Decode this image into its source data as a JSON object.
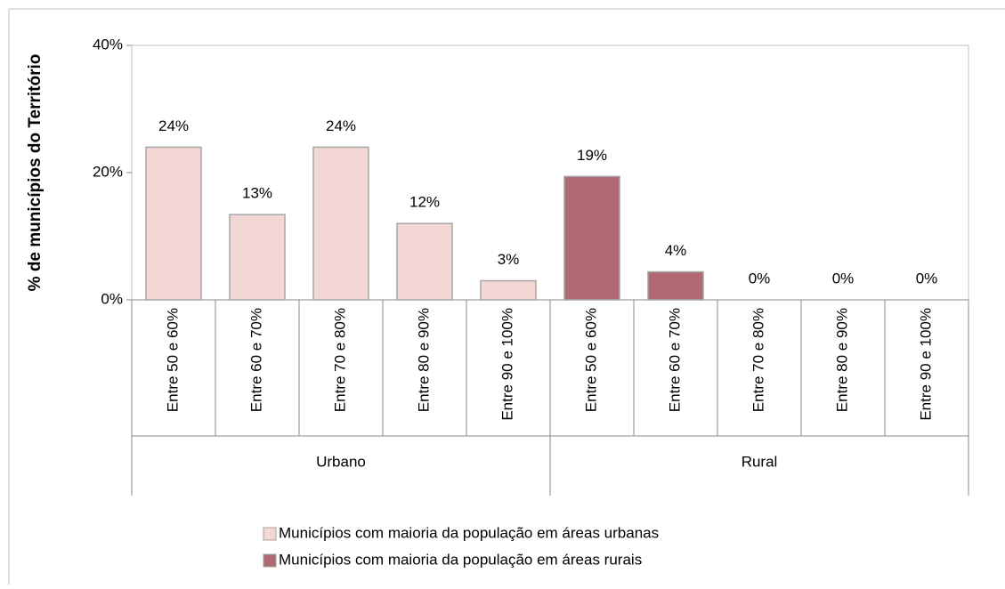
{
  "chart_data": {
    "type": "bar",
    "y_axis_label": "% de municípios do Território",
    "categories": [
      "Entre 50 e 60%",
      "Entre 60 e 70%",
      "Entre 70 e 80%",
      "Entre 80 e 90%",
      "Entre 90 e 100%",
      "Entre 50 e 60%",
      "Entre 60 e 70%",
      "Entre 70 e 80%",
      "Entre 80 e 90%",
      "Entre 90 e 100%"
    ],
    "groups": [
      "Urbano",
      "Rural"
    ],
    "series": [
      {
        "name": "Municípios com maioria da população em áreas urbanas",
        "color": "#f2d7d5",
        "values": [
          24,
          13.4,
          24,
          12,
          3,
          null,
          null,
          null,
          null,
          null
        ],
        "value_labels": [
          "24%",
          "13%",
          "24%",
          "12%",
          "3%",
          null,
          null,
          null,
          null,
          null
        ]
      },
      {
        "name": "Municípios com maioria  da  população em áreas  rurais",
        "color": "#b06a73",
        "values": [
          null,
          null,
          null,
          null,
          null,
          19.4,
          4.4,
          0,
          0,
          0
        ],
        "value_labels": [
          null,
          null,
          null,
          null,
          null,
          "19%",
          "4%",
          "0%",
          "0%",
          "0%"
        ]
      }
    ],
    "ylim": [
      0,
      40
    ],
    "yticks": [
      {
        "value": 0,
        "label": "0%"
      },
      {
        "value": 20,
        "label": "20%"
      },
      {
        "value": 40,
        "label": "40%"
      }
    ]
  }
}
